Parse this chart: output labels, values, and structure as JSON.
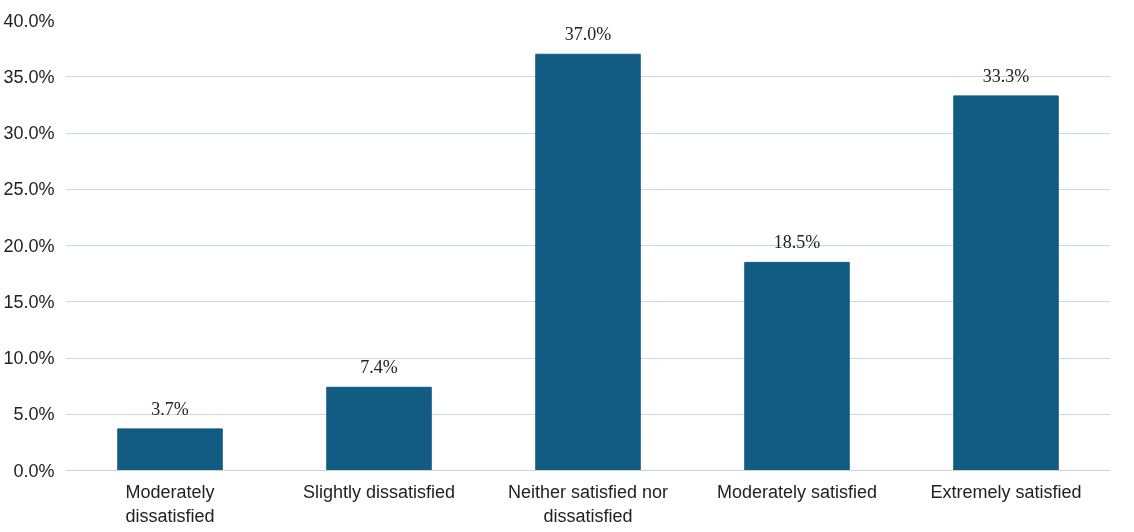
{
  "chart_data": {
    "type": "bar",
    "categories": [
      "Moderately dissatisfied",
      "Slightly dissatisfied",
      "Neither satisfied nor dissatisfied",
      "Moderately satisfied",
      "Extremely satisfied"
    ],
    "values": [
      3.7,
      7.4,
      37.0,
      18.5,
      33.3
    ],
    "value_labels": [
      "3.7%",
      "7.4%",
      "37.0%",
      "18.5%",
      "33.3%"
    ],
    "color": "#125b82",
    "ylim": [
      0,
      40
    ],
    "yticks": [
      {
        "value": 0,
        "label": "0.0%"
      },
      {
        "value": 5,
        "label": "5.0%"
      },
      {
        "value": 10,
        "label": "10.0%"
      },
      {
        "value": 15,
        "label": "15.0%"
      },
      {
        "value": 20,
        "label": "20.0%"
      },
      {
        "value": 25,
        "label": "25.0%"
      },
      {
        "value": 30,
        "label": "30.0%"
      },
      {
        "value": 35,
        "label": "35.0%"
      },
      {
        "value": 40,
        "label": "40.0%"
      }
    ],
    "grid": "y"
  }
}
